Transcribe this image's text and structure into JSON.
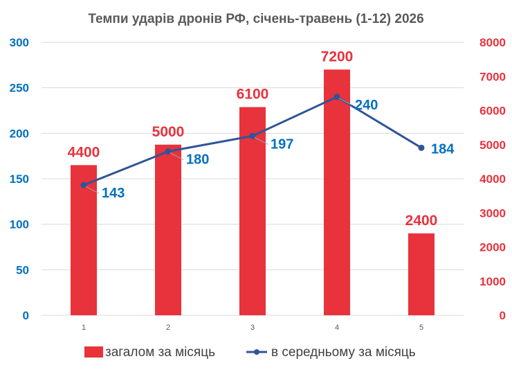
{
  "chart_data": {
    "type": "bar",
    "title": "Темпи ударів дронів РФ, січень-травень (1-12) 2026",
    "categories": [
      "1",
      "2",
      "3",
      "4",
      "5"
    ],
    "series": [
      {
        "name": "загалом за місяць",
        "type": "bar",
        "axis": "right",
        "values": [
          4400,
          5000,
          6100,
          7200,
          2400
        ],
        "color": "#E8323C"
      },
      {
        "name": "в середньому за місяць",
        "type": "line",
        "axis": "left",
        "values": [
          143,
          180,
          197,
          240,
          184
        ],
        "color": "#2F5597"
      }
    ],
    "y_left": {
      "range": [
        0,
        300
      ],
      "ticks": [
        "0",
        "50",
        "100",
        "150",
        "200",
        "250",
        "300"
      ],
      "color": "#0070C0"
    },
    "y_right": {
      "range": [
        0,
        8000
      ],
      "ticks": [
        "0",
        "1000",
        "2000",
        "3000",
        "4000",
        "5000",
        "6000",
        "7000",
        "8000"
      ],
      "color": "#E8323C"
    },
    "grid": true,
    "legend": "bottom",
    "line_label_color": "#0070C0"
  }
}
